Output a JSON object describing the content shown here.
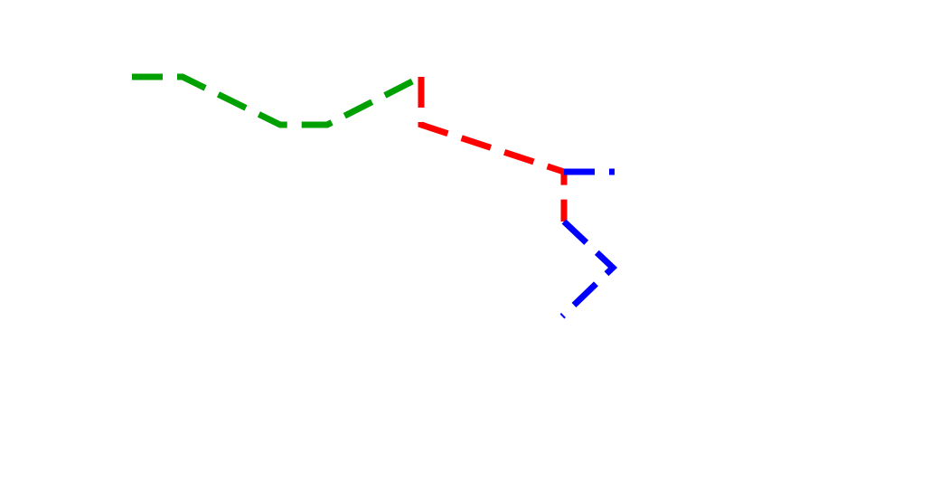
{
  "diagram": {
    "segments": [
      {
        "name": "green-dashed-path",
        "color": "#00a000"
      },
      {
        "name": "red-dashed-path",
        "color": "#ff0000"
      },
      {
        "name": "blue-dashed-path",
        "color": "#0000ff"
      }
    ]
  }
}
